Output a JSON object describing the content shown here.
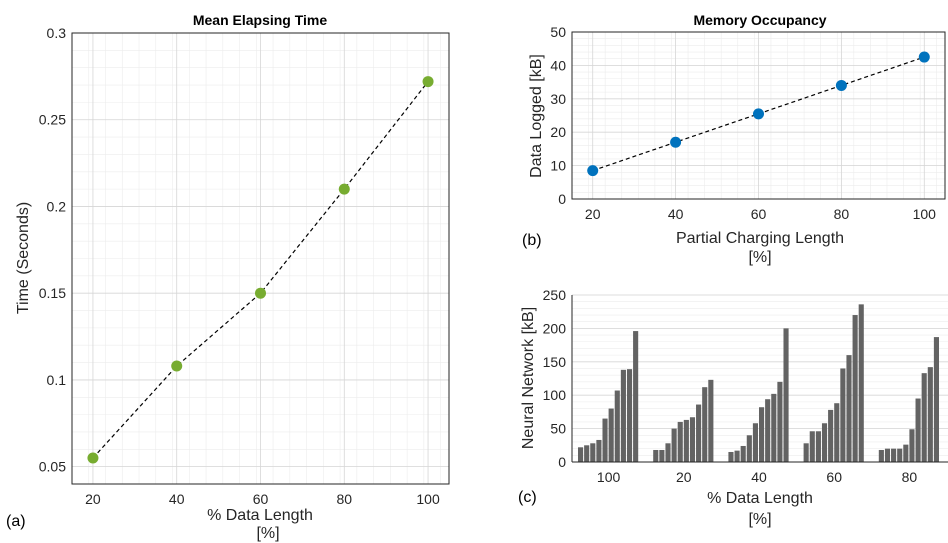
{
  "chart_data": [
    {
      "type": "scatter",
      "panel": "(a)",
      "title": "Mean Elapsing Time",
      "xlabel": "% Data Length",
      "xlabel2": "[%]",
      "ylabel": "Time (Seconds)",
      "xlim": [
        15,
        105
      ],
      "ylim": [
        0.04,
        0.3
      ],
      "xticks": [
        "20",
        "40",
        "60",
        "80",
        "100"
      ],
      "yticks": [
        "0.05",
        "0.1",
        "0.15",
        "0.2",
        "0.25",
        "0.3"
      ],
      "grid": true,
      "trend_line": "dashed",
      "marker_color": "#77ac30",
      "x": [
        20,
        40,
        60,
        80,
        100
      ],
      "y": [
        0.055,
        0.108,
        0.15,
        0.21,
        0.272
      ]
    },
    {
      "type": "scatter",
      "panel": "(b)",
      "title": "Memory Occupancy",
      "xlabel": "Partial Charging Length",
      "xlabel2": "[%]",
      "ylabel": "Data Logged [kB]",
      "xlim": [
        15,
        105
      ],
      "ylim": [
        0,
        50
      ],
      "xticks": [
        "20",
        "40",
        "60",
        "80",
        "100"
      ],
      "yticks": [
        "0",
        "10",
        "20",
        "30",
        "40",
        "50"
      ],
      "grid": true,
      "trend_line": "dashed",
      "marker_color": "#0072bd",
      "x": [
        20,
        40,
        60,
        80,
        100
      ],
      "y": [
        8.5,
        17.0,
        25.5,
        34.0,
        42.5
      ]
    },
    {
      "type": "bar",
      "panel": "(c)",
      "xlabel": "% Data Length",
      "xlabel2": "[%]",
      "ylabel": "Neural Network [kB]",
      "ylim": [
        0,
        250
      ],
      "yticks": [
        "0",
        "50",
        "100",
        "150",
        "200",
        "250"
      ],
      "grid": true,
      "bar_color": "#636363",
      "categories": [
        "100",
        "20",
        "40",
        "60",
        "80"
      ],
      "groups": [
        [
          22,
          25,
          28,
          33,
          65,
          80,
          107,
          138,
          139,
          196
        ],
        [
          18,
          18,
          28,
          50,
          60,
          63,
          67,
          86,
          112,
          123
        ],
        [
          15,
          17,
          24,
          40,
          58,
          82,
          94,
          102,
          120,
          200
        ],
        [
          28,
          46,
          46,
          58,
          78,
          88,
          140,
          160,
          220,
          236
        ],
        [
          18,
          20,
          20,
          20,
          26,
          49,
          95,
          133,
          142,
          187
        ]
      ]
    }
  ]
}
